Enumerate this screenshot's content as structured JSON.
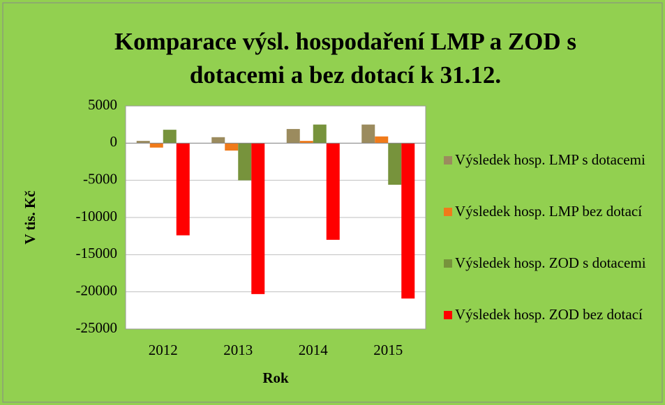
{
  "chart_data": {
    "type": "bar",
    "title": "Komparace výsl. hospodaření LMP a ZOD s dotacemi a bez dotací k 31.12.",
    "x_label": "Rok",
    "y_label": "V tis. Kč",
    "categories": [
      "2012",
      "2013",
      "2014",
      "2015"
    ],
    "series": [
      {
        "name": "Výsledek hosp. LMP s dotacemi",
        "color": "#9b8b5e",
        "values": [
          300,
          800,
          1900,
          2500
        ]
      },
      {
        "name": "Výsledek hosp. LMP bez dotací",
        "color": "#f07a1a",
        "values": [
          -600,
          -1000,
          300,
          900
        ]
      },
      {
        "name": "Výsledek hosp. ZOD s dotacemi",
        "color": "#77933c",
        "values": [
          1800,
          -5000,
          2500,
          -5600
        ]
      },
      {
        "name": "Výsledek hosp. ZOD bez dotací",
        "color": "#ff0000",
        "values": [
          -12400,
          -20300,
          -13000,
          -20900
        ]
      }
    ],
    "ylim": [
      -25000,
      5000
    ],
    "yticks": [
      -25000,
      -20000,
      -15000,
      -10000,
      -5000,
      0,
      5000
    ],
    "grid": true,
    "legend": "right"
  }
}
